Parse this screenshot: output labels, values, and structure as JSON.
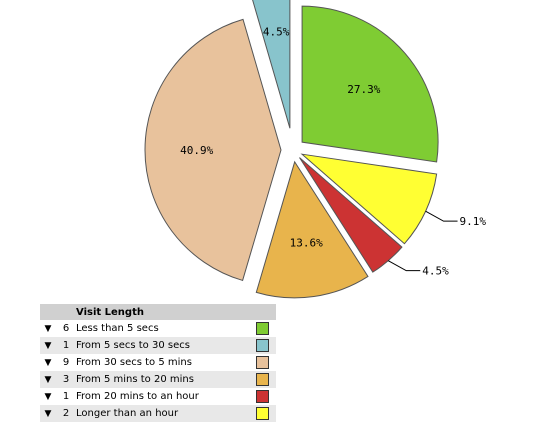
{
  "chart_data": {
    "type": "pie",
    "title": "",
    "slices": [
      {
        "label": "Less than 5 secs",
        "count": "6",
        "value": 27.3,
        "display": "27.3%",
        "color": "#7fcc33"
      },
      {
        "label": "Longer than an hour",
        "count": "2",
        "value": 9.1,
        "display": "9.1%",
        "color": "#ffff33"
      },
      {
        "label": "From 20 mins to an hour",
        "count": "1",
        "value": 4.5,
        "display": "4.5%",
        "color": "#cc3333"
      },
      {
        "label": "From 5 mins to 20 mins",
        "count": "3",
        "value": 13.6,
        "display": "13.6%",
        "color": "#e8b44c"
      },
      {
        "label": "From 30 secs to 5 mins",
        "count": "9",
        "value": 40.9,
        "display": "40.9%",
        "color": "#e8c29c"
      },
      {
        "label": "From 5 secs to 30 secs",
        "count": "1",
        "value": 4.5,
        "display": "4.5%",
        "color": "#88c4cc"
      }
    ]
  },
  "legend": {
    "title": "Visit Length",
    "arrow": "▼",
    "items": [
      {
        "count": "6",
        "label": "Less than 5 secs",
        "color": "#7fcc33"
      },
      {
        "count": "1",
        "label": "From 5 secs to 30 secs",
        "color": "#88c4cc"
      },
      {
        "count": "9",
        "label": "From 30 secs to 5 mins",
        "color": "#e8c29c"
      },
      {
        "count": "3",
        "label": "From 5 mins to 20 mins",
        "color": "#e8b44c"
      },
      {
        "count": "1",
        "label": "From 20 mins to an hour",
        "color": "#cc3333"
      },
      {
        "count": "2",
        "label": "Longer than an hour",
        "color": "#ffff33"
      }
    ]
  }
}
